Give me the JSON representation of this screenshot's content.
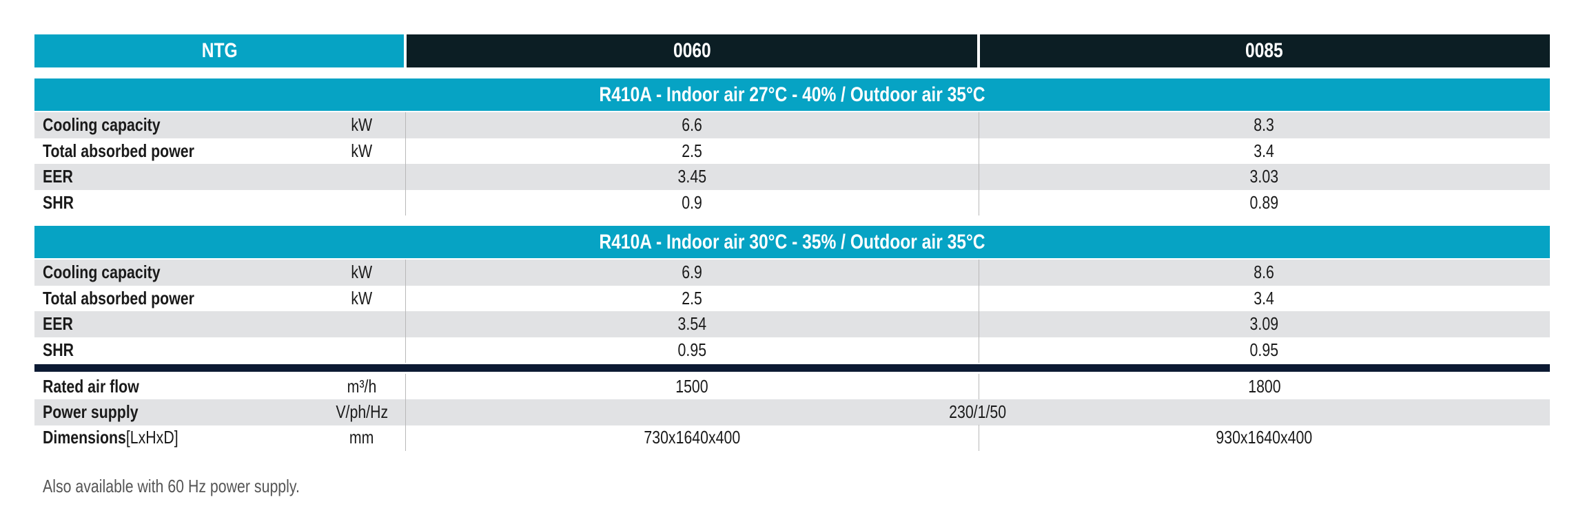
{
  "header": [
    "NTG",
    "0060",
    "0085"
  ],
  "sections": [
    {
      "title": "R410A - Indoor air 27°C -  40% / Outdoor air 35°C",
      "rows": [
        {
          "label": "Cooling capacity",
          "unit": "kW",
          "values": [
            "6.6",
            "8.3"
          ]
        },
        {
          "label": "Total absorbed power",
          "unit": "kW",
          "values": [
            "2.5",
            "3.4"
          ]
        },
        {
          "label": "EER",
          "values": [
            "3.45",
            "3.03"
          ]
        },
        {
          "label": "SHR",
          "values": [
            "0.9",
            "0.89"
          ]
        }
      ]
    },
    {
      "title": "R410A - Indoor air 30°C -  35% / Outdoor air 35°C",
      "rows": [
        {
          "label": "Cooling capacity",
          "unit": "kW",
          "values": [
            "6.9",
            "8.6"
          ]
        },
        {
          "label": "Total absorbed power",
          "unit": "kW",
          "values": [
            "2.5",
            "3.4"
          ]
        },
        {
          "label": "EER",
          "values": [
            "3.54",
            "3.09"
          ]
        },
        {
          "label": "SHR",
          "values": [
            "0.95",
            "0.95"
          ]
        }
      ]
    }
  ],
  "general_rows": [
    {
      "label": "Rated air flow",
      "unit": "m³/h",
      "values": [
        "1500",
        "1800"
      ]
    },
    {
      "label": "Power supply",
      "unit": "V/ph/Hz",
      "merged_value": "230/1/50"
    },
    {
      "label": "Dimensions",
      "label_note": "[LxHxD]",
      "unit": "mm",
      "values": [
        "730x1640x400",
        "930x1640x400"
      ]
    }
  ],
  "footnote": "Also available with 60 Hz power supply."
}
